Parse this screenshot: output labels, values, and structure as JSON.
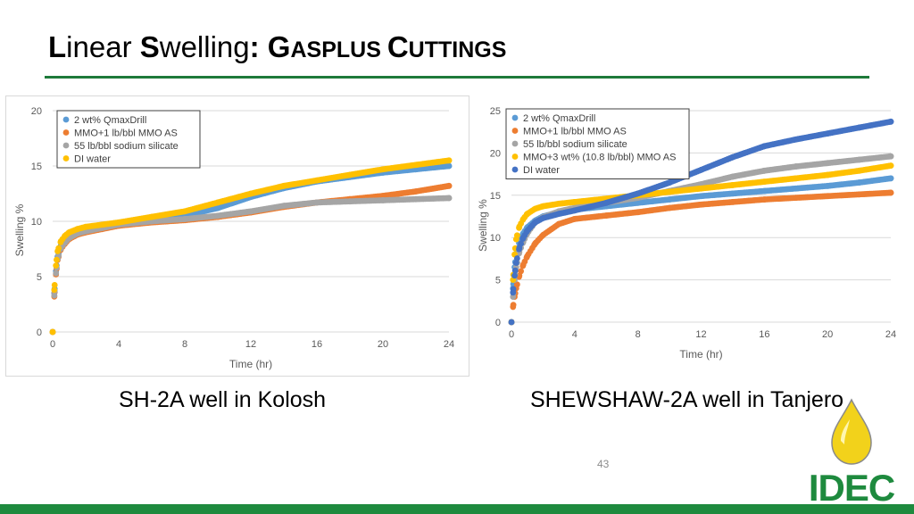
{
  "slide": {
    "title_parts": [
      {
        "text": "L",
        "style": "cap"
      },
      {
        "text": "inear ",
        "style": "plain"
      },
      {
        "text": "S",
        "style": "cap"
      },
      {
        "text": "welling",
        "style": "plain"
      },
      {
        "text": ": G",
        "style": "cap"
      },
      {
        "text": "ASPLUS ",
        "style": "sc"
      },
      {
        "text": "C",
        "style": "cap"
      },
      {
        "text": "UTTINGS",
        "style": "sc"
      }
    ],
    "caption_left": "SH-2A well in Kolosh",
    "caption_right": "SHEWSHAW-2A well in Tanjero",
    "page_number": "43",
    "logo_text": "IDEC",
    "colors": {
      "accent_green": "#1e7a3a",
      "bar_green": "#1e8a3e",
      "logo_yellow": "#f2d21b"
    }
  },
  "chart_data": [
    {
      "type": "scatter",
      "xlabel": "Time (hr)",
      "ylabel": "Swelling %",
      "xlim": [
        0,
        24
      ],
      "ylim": [
        0,
        20
      ],
      "xticks": [
        0,
        4,
        8,
        12,
        16,
        20,
        24
      ],
      "yticks": [
        0,
        5,
        10,
        15,
        20
      ],
      "grid": "horizontal",
      "legend_position": "top-left",
      "series": [
        {
          "name": "2 wt% QmaxDrill",
          "color": "#5b9bd5",
          "x": [
            0,
            0.1,
            0.2,
            0.3,
            0.5,
            0.75,
            1,
            1.5,
            2,
            3,
            4,
            6,
            8,
            10,
            12,
            14,
            16,
            18,
            20,
            22,
            24
          ],
          "y": [
            0,
            3.5,
            5.5,
            6.8,
            7.8,
            8.3,
            8.7,
            9.1,
            9.3,
            9.6,
            9.8,
            10.2,
            10.5,
            11.2,
            12.2,
            13.0,
            13.6,
            14.0,
            14.4,
            14.7,
            15.0
          ]
        },
        {
          "name": "MMO+1 lb/bbl MMO AS",
          "color": "#ed7d31",
          "x": [
            0,
            0.1,
            0.2,
            0.3,
            0.5,
            0.75,
            1,
            1.5,
            2,
            3,
            4,
            6,
            8,
            10,
            12,
            14,
            16,
            18,
            20,
            22,
            24
          ],
          "y": [
            0,
            3.2,
            5.2,
            6.5,
            7.5,
            8.0,
            8.4,
            8.8,
            9.0,
            9.3,
            9.6,
            9.9,
            10.1,
            10.4,
            10.8,
            11.3,
            11.7,
            12.0,
            12.3,
            12.7,
            13.2
          ]
        },
        {
          "name": "55 lb/bbl sodium silicate",
          "color": "#a5a5a5",
          "x": [
            0,
            0.1,
            0.2,
            0.3,
            0.5,
            0.75,
            1,
            1.5,
            2,
            3,
            4,
            6,
            8,
            10,
            12,
            14,
            16,
            18,
            20,
            22,
            24
          ],
          "y": [
            0,
            3.3,
            5.3,
            6.6,
            7.6,
            8.1,
            8.5,
            8.9,
            9.1,
            9.4,
            9.7,
            10.0,
            10.2,
            10.5,
            10.9,
            11.4,
            11.7,
            11.8,
            11.9,
            12.0,
            12.1
          ]
        },
        {
          "name": "DI water",
          "color": "#ffc000",
          "x": [
            0,
            0.1,
            0.2,
            0.3,
            0.5,
            0.75,
            1,
            1.5,
            2,
            3,
            4,
            6,
            8,
            10,
            12,
            14,
            16,
            18,
            20,
            22,
            24
          ],
          "y": [
            0,
            3.8,
            6.0,
            7.3,
            8.2,
            8.7,
            9.0,
            9.3,
            9.5,
            9.7,
            9.9,
            10.4,
            10.9,
            11.7,
            12.5,
            13.2,
            13.7,
            14.2,
            14.7,
            15.1,
            15.5
          ]
        }
      ]
    },
    {
      "type": "scatter",
      "xlabel": "Time (hr)",
      "ylabel": "Swelling %",
      "xlim": [
        0,
        24
      ],
      "ylim": [
        0,
        25
      ],
      "xticks": [
        0,
        4,
        8,
        12,
        16,
        20,
        24
      ],
      "yticks": [
        0,
        5,
        10,
        15,
        20,
        25
      ],
      "grid": "horizontal",
      "legend_position": "top-left",
      "series": [
        {
          "name": "2 wt% QmaxDrill",
          "color": "#5b9bd5",
          "x": [
            0,
            0.1,
            0.2,
            0.3,
            0.5,
            0.75,
            1,
            1.5,
            2,
            3,
            4,
            6,
            8,
            10,
            12,
            14,
            16,
            18,
            20,
            22,
            24
          ],
          "y": [
            0,
            4,
            6.5,
            8,
            9.5,
            10.5,
            11.2,
            12,
            12.5,
            13,
            13.3,
            13.7,
            14.1,
            14.5,
            14.9,
            15.2,
            15.5,
            15.8,
            16.1,
            16.5,
            17
          ]
        },
        {
          "name": "MMO+1 lb/bbl MMO AS",
          "color": "#ed7d31",
          "x": [
            0,
            0.1,
            0.2,
            0.3,
            0.5,
            0.75,
            1,
            1.5,
            2,
            3,
            4,
            6,
            8,
            10,
            12,
            14,
            16,
            18,
            20,
            22,
            24
          ],
          "y": [
            0,
            1.8,
            3,
            4,
            5.5,
            6.8,
            7.8,
            9.3,
            10.3,
            11.6,
            12.2,
            12.6,
            13.0,
            13.5,
            13.9,
            14.2,
            14.5,
            14.7,
            14.9,
            15.1,
            15.3
          ]
        },
        {
          "name": "55 lb/bbl sodium silicate",
          "color": "#a5a5a5",
          "x": [
            0,
            0.1,
            0.2,
            0.3,
            0.5,
            0.75,
            1,
            1.5,
            2,
            3,
            4,
            6,
            8,
            10,
            12,
            14,
            16,
            18,
            20,
            22,
            24
          ],
          "y": [
            0,
            3,
            5,
            6.5,
            8.3,
            9.5,
            10.5,
            11.8,
            12.4,
            13.1,
            13.5,
            14.1,
            14.7,
            15.5,
            16.3,
            17.2,
            17.9,
            18.4,
            18.8,
            19.2,
            19.6
          ]
        },
        {
          "name": "MMO+3 wt% (10.8 lb/bbl) MMO AS",
          "color": "#ffc000",
          "x": [
            0,
            0.1,
            0.2,
            0.3,
            0.5,
            0.75,
            1,
            1.5,
            2,
            3,
            4,
            6,
            8,
            10,
            12,
            14,
            16,
            18,
            20,
            22,
            24
          ],
          "y": [
            0,
            5,
            8,
            9.8,
            11.3,
            12.2,
            12.8,
            13.4,
            13.7,
            14,
            14.2,
            14.6,
            15,
            15.4,
            15.8,
            16.2,
            16.6,
            17,
            17.4,
            17.9,
            18.5
          ]
        },
        {
          "name": "DI water",
          "color": "#4472c4",
          "x": [
            0,
            0.1,
            0.2,
            0.3,
            0.5,
            0.75,
            1,
            1.5,
            2,
            3,
            4,
            6,
            8,
            10,
            12,
            14,
            16,
            18,
            20,
            22,
            24
          ],
          "y": [
            0,
            3.5,
            5.5,
            7,
            8.8,
            10,
            10.8,
            11.8,
            12.3,
            12.8,
            13.2,
            14.1,
            15.2,
            16.5,
            18,
            19.5,
            20.8,
            21.6,
            22.3,
            23,
            23.7
          ]
        }
      ]
    }
  ]
}
